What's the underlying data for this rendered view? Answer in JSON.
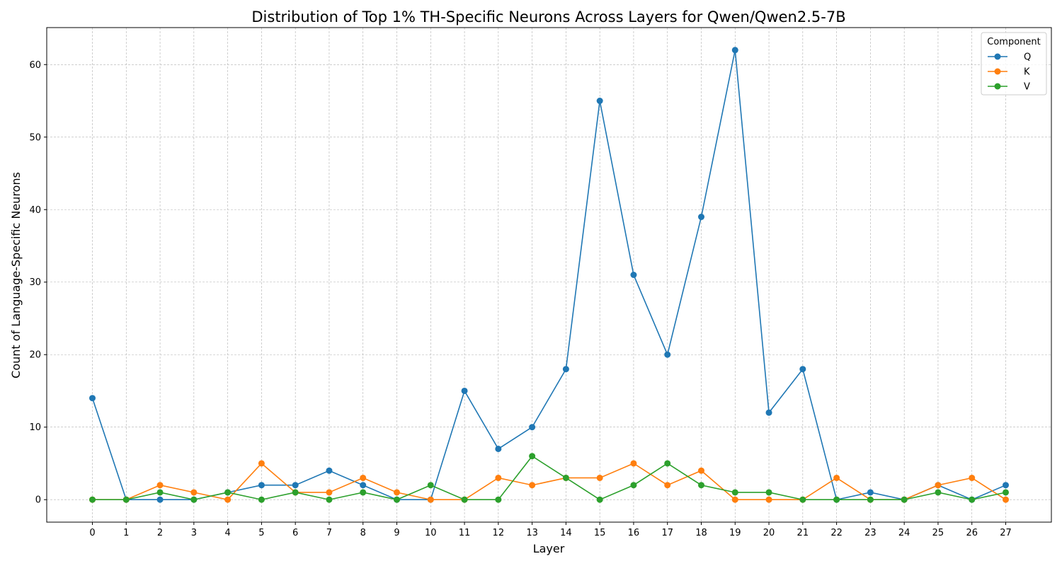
{
  "chart_data": {
    "type": "line",
    "title": "Distribution of Top 1% TH-Specific Neurons Across Layers for Qwen/Qwen2.5-7B",
    "xlabel": "Layer",
    "ylabel": "Count of Language-Specific Neurons",
    "x": [
      0,
      1,
      2,
      3,
      4,
      5,
      6,
      7,
      8,
      9,
      10,
      11,
      12,
      13,
      14,
      15,
      16,
      17,
      18,
      19,
      20,
      21,
      22,
      23,
      24,
      25,
      26,
      27
    ],
    "xlim": [
      -1.35,
      28.35
    ],
    "ylim": [
      -3.1,
      65.1
    ],
    "yticks": [
      0,
      10,
      20,
      30,
      40,
      50,
      60
    ],
    "grid": true,
    "legend": {
      "title": "Component",
      "placement": "top-right"
    },
    "series": [
      {
        "name": "Q",
        "color": "#1f77b4",
        "values": [
          14,
          0,
          0,
          0,
          1,
          2,
          2,
          4,
          2,
          0,
          0,
          15,
          7,
          10,
          18,
          55,
          31,
          20,
          39,
          62,
          12,
          18,
          0,
          1,
          0,
          2,
          0,
          2
        ]
      },
      {
        "name": "K",
        "color": "#ff7f0e",
        "values": [
          0,
          0,
          2,
          1,
          0,
          5,
          1,
          1,
          3,
          1,
          0,
          0,
          3,
          2,
          3,
          3,
          5,
          2,
          4,
          0,
          0,
          0,
          3,
          0,
          0,
          2,
          3,
          0
        ]
      },
      {
        "name": "V",
        "color": "#2ca02c",
        "values": [
          0,
          0,
          1,
          0,
          1,
          0,
          1,
          0,
          1,
          0,
          2,
          0,
          0,
          6,
          3,
          0,
          2,
          5,
          2,
          1,
          1,
          0,
          0,
          0,
          0,
          1,
          0,
          1
        ]
      }
    ]
  }
}
